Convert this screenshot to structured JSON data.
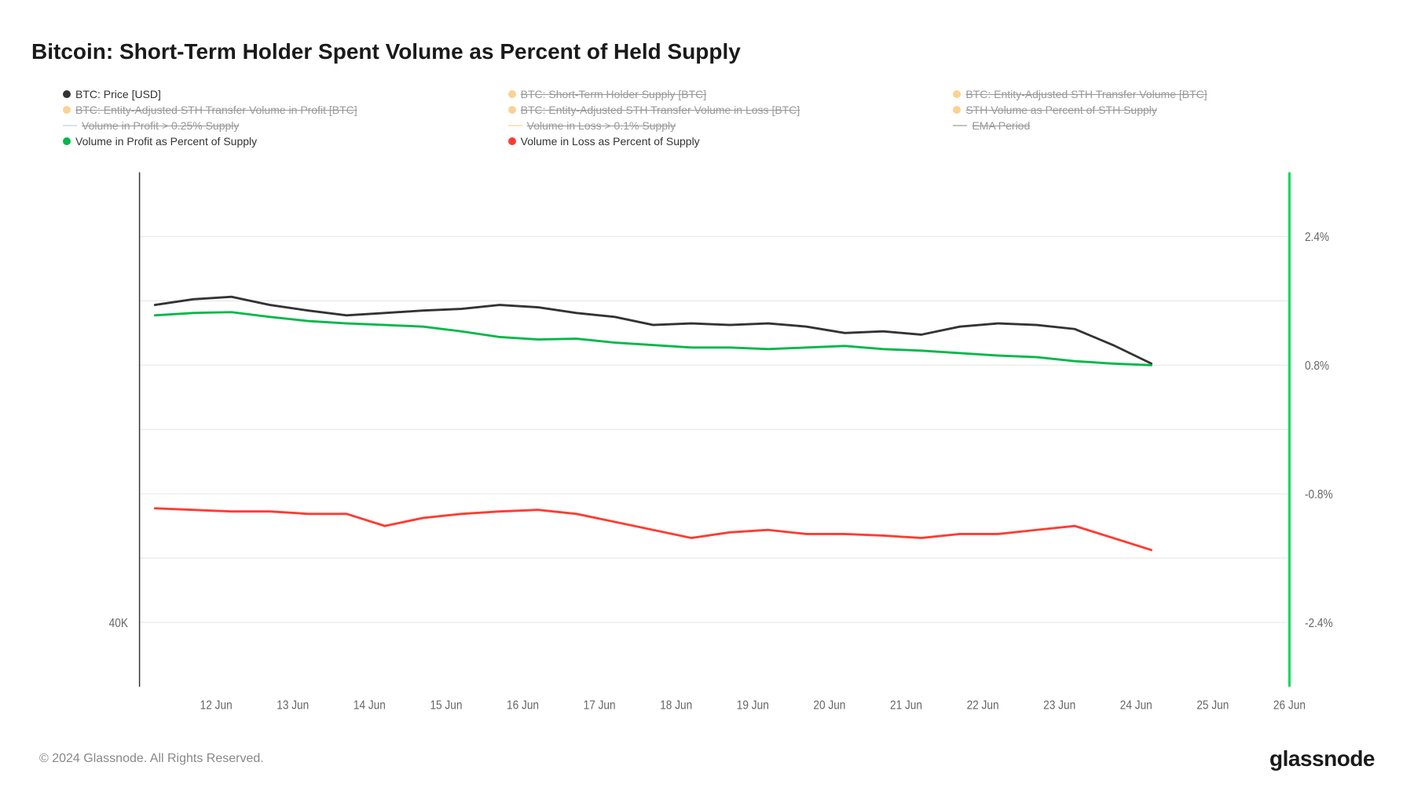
{
  "title": "Bitcoin: Short-Term Holder Spent Volume as Percent of Held Supply",
  "copyright": "© 2024 Glassnode. All Rights Reserved.",
  "brand": "glassnode",
  "legend": [
    {
      "label": "BTC: Price [USD]",
      "color": "#333333",
      "type": "dot",
      "disabled": false
    },
    {
      "label": "BTC: Short-Term Holder Supply [BTC]",
      "color": "#f5a623",
      "type": "dot",
      "disabled": true
    },
    {
      "label": "BTC: Entity-Adjusted STH Transfer Volume [BTC]",
      "color": "#f5a623",
      "type": "dot",
      "disabled": true
    },
    {
      "label": "BTC: Entity-Adjusted STH Transfer Volume in Profit [BTC]",
      "color": "#f5a623",
      "type": "dot",
      "disabled": true
    },
    {
      "label": "BTC: Entity-Adjusted STH Transfer Volume in Loss [BTC]",
      "color": "#f5a623",
      "type": "dot",
      "disabled": true
    },
    {
      "label": "STH Volume as Percent of STH Supply",
      "color": "#f5a623",
      "type": "dot",
      "disabled": true
    },
    {
      "label": "Volume in Profit > 0.25% Supply",
      "color": "#a8c8e8",
      "type": "line",
      "disabled": true
    },
    {
      "label": "Volume in Loss > 0.1% Supply",
      "color": "#f5d078",
      "type": "line",
      "disabled": true
    },
    {
      "label": "EMA Period",
      "color": "#888888",
      "type": "line",
      "disabled": true
    },
    {
      "label": "Volume in Profit as Percent of Supply",
      "color": "#00b84a",
      "type": "dot",
      "disabled": false
    },
    {
      "label": "Volume in Loss as Percent of Supply",
      "color": "#ff3b30",
      "type": "dot",
      "disabled": false
    }
  ],
  "chart": {
    "type": "line",
    "background_color": "#ffffff",
    "grid_color": "#e8e8e8",
    "x_axis": {
      "ticks": [
        "12 Jun",
        "13 Jun",
        "14 Jun",
        "15 Jun",
        "16 Jun",
        "17 Jun",
        "18 Jun",
        "19 Jun",
        "20 Jun",
        "21 Jun",
        "22 Jun",
        "23 Jun",
        "24 Jun",
        "25 Jun",
        "26 Jun"
      ],
      "domain_index": [
        0,
        15
      ]
    },
    "y_left": {
      "label": "40K",
      "label_fontsize": 14,
      "color": "#666"
    },
    "y_right": {
      "ticks": [
        "2.4%",
        "0.8%",
        "-0.8%",
        "-2.4%"
      ],
      "tick_values": [
        2.4,
        0.8,
        -0.8,
        -2.4
      ],
      "domain": [
        -3.2,
        3.2
      ],
      "label_fontsize": 14,
      "color": "#666"
    },
    "series": [
      {
        "name": "price",
        "color": "#333333",
        "width": 2.5,
        "data": [
          1.55,
          1.62,
          1.65,
          1.55,
          1.48,
          1.42,
          1.45,
          1.48,
          1.5,
          1.55,
          1.52,
          1.45,
          1.4,
          1.3,
          1.32,
          1.3,
          1.32,
          1.28,
          1.2,
          1.22,
          1.18,
          1.28,
          1.32,
          1.3,
          1.25,
          1.05,
          0.82
        ]
      },
      {
        "name": "profit",
        "color": "#00b84a",
        "width": 2.5,
        "data": [
          1.42,
          1.45,
          1.46,
          1.4,
          1.35,
          1.32,
          1.3,
          1.28,
          1.22,
          1.15,
          1.12,
          1.13,
          1.08,
          1.05,
          1.02,
          1.02,
          1.0,
          1.02,
          1.04,
          1.0,
          0.98,
          0.95,
          0.92,
          0.9,
          0.85,
          0.82,
          0.8
        ]
      },
      {
        "name": "loss",
        "color": "#ff3b30",
        "width": 2.5,
        "data": [
          -0.98,
          -1.0,
          -1.02,
          -1.02,
          -1.05,
          -1.05,
          -1.2,
          -1.1,
          -1.05,
          -1.02,
          -1.0,
          -1.05,
          -1.15,
          -1.25,
          -1.35,
          -1.28,
          -1.25,
          -1.3,
          -1.3,
          -1.32,
          -1.35,
          -1.3,
          -1.3,
          -1.25,
          -1.2,
          -1.35,
          -1.5
        ]
      }
    ],
    "axis_color": "#333333",
    "right_axis_marker_color": "#00d956"
  }
}
